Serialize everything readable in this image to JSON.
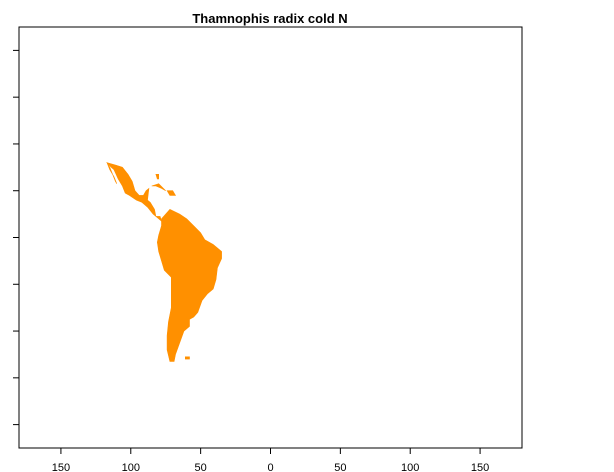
{
  "title": "Thamnophis radix cold N",
  "colors": {
    "range_fill": "#ff9000",
    "background": "#ffffff",
    "frame": "#000000"
  },
  "map": {
    "projection": "equirectangular",
    "xlim": [
      -180,
      180
    ],
    "ylim": [
      -90,
      90
    ],
    "x_tick_labels": [
      "150",
      "100",
      "50",
      "0",
      "50",
      "100",
      "150"
    ],
    "x_tick_values": [
      -150,
      -100,
      -50,
      0,
      50,
      100,
      150
    ],
    "y_tick_values": [
      -80,
      -60,
      -40,
      -20,
      0,
      20,
      40,
      60,
      80
    ],
    "region": "Central and South America",
    "range_shapes": {
      "mexico_mainland": [
        [
          -117,
          32
        ],
        [
          -111,
          31
        ],
        [
          -106,
          30
        ],
        [
          -102,
          27
        ],
        [
          -99,
          24
        ],
        [
          -97,
          20
        ],
        [
          -94,
          18
        ],
        [
          -91,
          18
        ],
        [
          -89,
          20
        ],
        [
          -87,
          21
        ],
        [
          -88,
          16
        ],
        [
          -86,
          15
        ],
        [
          -83,
          12
        ],
        [
          -82,
          9
        ],
        [
          -79,
          9
        ],
        [
          -78,
          7
        ],
        [
          -80,
          8
        ],
        [
          -84,
          10
        ],
        [
          -88,
          13
        ],
        [
          -92,
          15
        ],
        [
          -96,
          16
        ],
        [
          -101,
          18
        ],
        [
          -104,
          19
        ],
        [
          -106,
          22
        ],
        [
          -109,
          25
        ],
        [
          -112,
          29
        ],
        [
          -114,
          30
        ],
        [
          -117,
          32
        ]
      ],
      "baja": [
        [
          -117,
          32
        ],
        [
          -115,
          30
        ],
        [
          -113,
          27
        ],
        [
          -111,
          24
        ],
        [
          -110,
          23
        ],
        [
          -112,
          26
        ],
        [
          -115,
          29
        ],
        [
          -117,
          32
        ]
      ],
      "cuba": [
        [
          -85,
          22
        ],
        [
          -80,
          23
        ],
        [
          -75,
          20
        ],
        [
          -78,
          21
        ],
        [
          -82,
          22
        ],
        [
          -85,
          22
        ]
      ],
      "hispaniola": [
        [
          -74,
          20
        ],
        [
          -70,
          20
        ],
        [
          -68,
          18
        ],
        [
          -72,
          18
        ],
        [
          -74,
          20
        ]
      ],
      "south_america": [
        [
          -78,
          8
        ],
        [
          -72,
          12
        ],
        [
          -65,
          10
        ],
        [
          -60,
          8
        ],
        [
          -55,
          5
        ],
        [
          -50,
          2
        ],
        [
          -47,
          -1
        ],
        [
          -41,
          -3
        ],
        [
          -35,
          -6
        ],
        [
          -35,
          -9
        ],
        [
          -38,
          -13
        ],
        [
          -39,
          -18
        ],
        [
          -41,
          -22
        ],
        [
          -45,
          -24
        ],
        [
          -49,
          -27
        ],
        [
          -52,
          -32
        ],
        [
          -55,
          -34
        ],
        [
          -58,
          -35
        ],
        [
          -58,
          -38
        ],
        [
          -62,
          -40
        ],
        [
          -65,
          -45
        ],
        [
          -68,
          -50
        ],
        [
          -69,
          -53
        ],
        [
          -72,
          -53
        ],
        [
          -74,
          -48
        ],
        [
          -74,
          -42
        ],
        [
          -73,
          -36
        ],
        [
          -71,
          -30
        ],
        [
          -71,
          -22
        ],
        [
          -71,
          -17
        ],
        [
          -76,
          -14
        ],
        [
          -80,
          -6
        ],
        [
          -81,
          -2
        ],
        [
          -80,
          1
        ],
        [
          -78,
          5
        ],
        [
          -78,
          8
        ]
      ],
      "falklands": [
        [
          -61,
          -51
        ],
        [
          -58,
          -51
        ],
        [
          -58,
          -52
        ],
        [
          -61,
          -52
        ],
        [
          -61,
          -51
        ]
      ],
      "florida": [
        [
          -82,
          27
        ],
        [
          -80,
          27
        ],
        [
          -80,
          25
        ],
        [
          -81,
          25
        ],
        [
          -82,
          27
        ]
      ]
    }
  }
}
